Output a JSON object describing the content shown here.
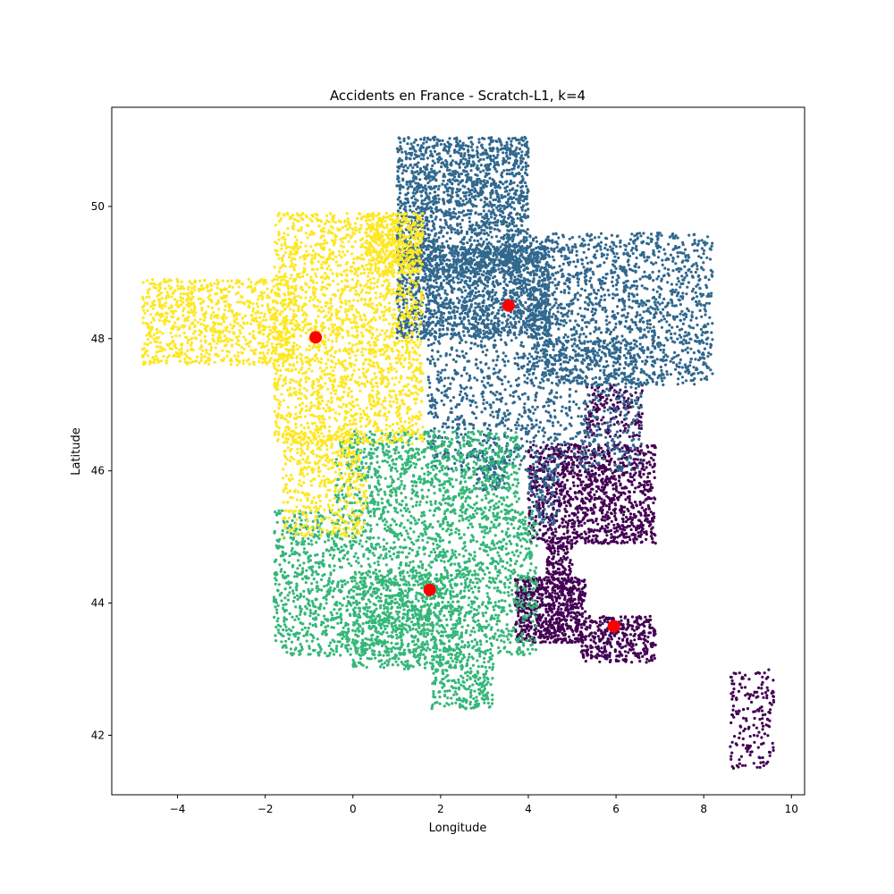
{
  "chart_data": {
    "type": "scatter",
    "title": "Accidents en France - Scratch-L1, k=4",
    "xlabel": "Longitude",
    "ylabel": "Latitude",
    "xlim": [
      -5.5,
      10.3
    ],
    "ylim": [
      41.1,
      51.5
    ],
    "xticks": [
      -4,
      -2,
      0,
      2,
      4,
      6,
      8,
      10
    ],
    "yticks": [
      42,
      44,
      46,
      48,
      50
    ],
    "grid": false,
    "legend": "none",
    "colors": {
      "cluster_0": "#440154",
      "cluster_1": "#31688e",
      "cluster_2": "#35b779",
      "cluster_3": "#fde725",
      "centroid": "#ff0000"
    },
    "centroids": [
      {
        "cluster": 0,
        "x": 5.95,
        "y": 43.65
      },
      {
        "cluster": 1,
        "x": 3.55,
        "y": 48.5
      },
      {
        "cluster": 2,
        "x": 1.75,
        "y": 44.2
      },
      {
        "cluster": 3,
        "x": -0.85,
        "y": 48.02
      }
    ],
    "series": [
      {
        "cluster": 0,
        "regions": [
          [
            4.0,
            6.9,
            44.9,
            46.4,
            1200
          ],
          [
            3.7,
            5.3,
            43.4,
            44.4,
            700
          ],
          [
            5.2,
            6.9,
            43.1,
            43.8,
            350
          ],
          [
            4.4,
            5.0,
            44.2,
            45.0,
            150
          ],
          [
            5.3,
            6.6,
            46.5,
            47.3,
            180
          ],
          [
            8.6,
            9.6,
            41.5,
            43.0,
            180
          ]
        ]
      },
      {
        "cluster": 1,
        "regions": [
          [
            1.0,
            4.0,
            49.0,
            51.05,
            1800
          ],
          [
            1.0,
            4.5,
            48.0,
            49.4,
            1700
          ],
          [
            4.0,
            8.2,
            47.3,
            49.6,
            1600
          ],
          [
            1.7,
            6.6,
            46.0,
            48.0,
            1100
          ],
          [
            2.8,
            3.5,
            45.7,
            46.2,
            80
          ],
          [
            4.0,
            4.7,
            45.2,
            46.0,
            90
          ]
        ]
      },
      {
        "cluster": 2,
        "regions": [
          [
            -1.8,
            4.2,
            43.2,
            45.4,
            2200
          ],
          [
            -0.4,
            3.8,
            45.4,
            46.6,
            900
          ],
          [
            1.8,
            3.2,
            42.4,
            43.2,
            250
          ],
          [
            0.0,
            2.5,
            43.0,
            44.5,
            600
          ]
        ]
      },
      {
        "cluster": 3,
        "regions": [
          [
            -4.8,
            -1.3,
            47.6,
            48.9,
            900
          ],
          [
            -1.8,
            1.6,
            46.4,
            49.9,
            2200
          ],
          [
            -1.6,
            0.3,
            45.0,
            46.6,
            500
          ],
          [
            0.3,
            1.6,
            49.0,
            49.9,
            300
          ]
        ]
      }
    ]
  }
}
